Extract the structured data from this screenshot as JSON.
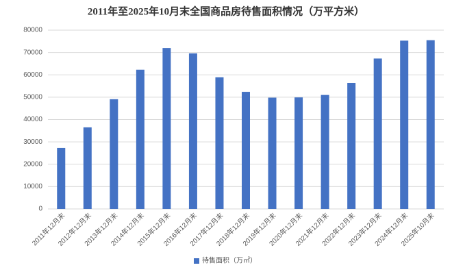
{
  "chart_data": {
    "type": "bar",
    "title": "2011年至2025年10月末全国商品房待售面积情况（万平方米）",
    "categories": [
      "2011年12月末",
      "2012年12月末",
      "2013年12月末",
      "2014年12月末",
      "2015年12月末",
      "2016年12月末",
      "2017年12月末",
      "2018年12月末",
      "2019年12月末",
      "2020年12月末",
      "2021年12月末",
      "2022年12月末",
      "2023年12月末",
      "2024年12月末",
      "2025年10月末"
    ],
    "series": [
      {
        "name": "待售面积（万㎡）",
        "color": "#4472c4",
        "values": [
          27300,
          36500,
          49100,
          62300,
          72000,
          69600,
          58900,
          52400,
          49800,
          49900,
          51000,
          56400,
          67300,
          75300,
          75500
        ]
      }
    ],
    "ylim": [
      0,
      80000
    ],
    "yticks": [
      0,
      10000,
      20000,
      30000,
      40000,
      50000,
      60000,
      70000,
      80000
    ],
    "grid": true,
    "legend": "bottom"
  }
}
